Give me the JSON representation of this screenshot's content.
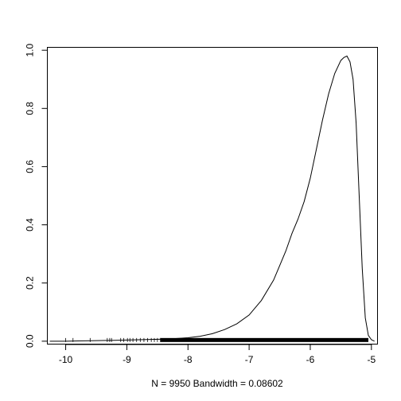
{
  "chart_data": {
    "type": "line",
    "title": "",
    "xlabel": "N = 9950   Bandwidth = 0.08602",
    "ylabel": "",
    "xlim": [
      -10.3,
      -4.9
    ],
    "ylim": [
      -0.01,
      1.01
    ],
    "x_ticks": [
      -10,
      -9,
      -8,
      -7,
      -6,
      -5
    ],
    "x_tick_labels": [
      "-10",
      "-9",
      "-8",
      "-7",
      "-6",
      "-5"
    ],
    "y_ticks": [
      0.0,
      0.2,
      0.4,
      0.6,
      0.8,
      1.0
    ],
    "y_tick_labels": [
      "0.0",
      "0.2",
      "0.4",
      "0.6",
      "0.8",
      "1.0"
    ],
    "grid": false,
    "series": [
      {
        "x": [
          -10.26,
          -10.0,
          -9.8,
          -9.5,
          -9.2,
          -9.0,
          -8.8,
          -8.6,
          -8.4,
          -8.2,
          -8.0,
          -7.8,
          -7.6,
          -7.4,
          -7.2,
          -7.0,
          -6.8,
          -6.6,
          -6.5,
          -6.4,
          -6.3,
          -6.2,
          -6.1,
          -6.0,
          -5.9,
          -5.8,
          -5.7,
          -5.6,
          -5.5,
          -5.45,
          -5.4,
          -5.35,
          -5.3,
          -5.25,
          -5.2,
          -5.15,
          -5.1,
          -5.05,
          -5.0,
          -4.95
        ],
        "y": [
          0.0,
          0.0,
          0.001,
          0.002,
          0.003,
          0.004,
          0.005,
          0.006,
          0.007,
          0.009,
          0.012,
          0.017,
          0.026,
          0.04,
          0.06,
          0.09,
          0.14,
          0.21,
          0.26,
          0.31,
          0.37,
          0.42,
          0.48,
          0.56,
          0.66,
          0.76,
          0.85,
          0.92,
          0.965,
          0.975,
          0.98,
          0.96,
          0.9,
          0.75,
          0.5,
          0.25,
          0.08,
          0.02,
          0.005,
          0.0
        ]
      }
    ],
    "rug_x": [
      -10.0,
      -9.88,
      -9.6,
      -9.32,
      -9.28,
      -9.25,
      -9.1,
      -9.05,
      -8.99,
      -8.95,
      -8.9,
      -8.84,
      -8.78,
      -8.72,
      -8.66,
      -8.6,
      -8.55,
      -8.5,
      -8.45
    ],
    "rug_dense_range": [
      -8.45,
      -5.05
    ]
  }
}
